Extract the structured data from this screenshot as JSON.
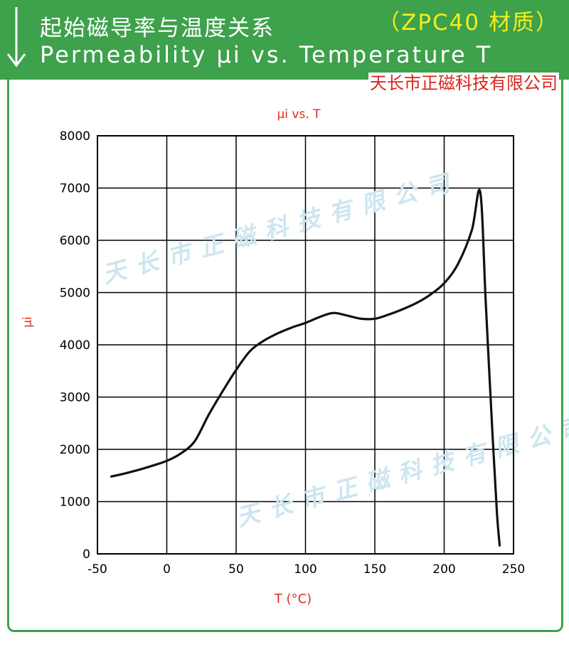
{
  "header": {
    "title_cn": "起始磁导率与温度关系",
    "title_en": "Permeability μi vs. Temperature T",
    "material": "（ZPC40 材质）",
    "company": "天长市正磁科技有限公司",
    "arrow_icon": "down-arrow-icon",
    "bg_color": "#3ea14c"
  },
  "watermark": {
    "text": "天长市正磁科技有限公司",
    "color": "#cde6f0"
  },
  "chart_data": {
    "type": "line",
    "title": "μi vs. T",
    "xlabel": "T (°C)",
    "ylabel": "μi",
    "xlim": [
      -50,
      250
    ],
    "ylim": [
      0,
      8000
    ],
    "xticks": [
      -50,
      0,
      50,
      100,
      150,
      200,
      250
    ],
    "yticks": [
      0,
      1000,
      2000,
      3000,
      4000,
      5000,
      6000,
      7000,
      8000
    ],
    "grid": true,
    "line_color": "#111111",
    "label_color": "#e02a20",
    "series": [
      {
        "name": "ZPC40",
        "x": [
          -40,
          -30,
          -20,
          -10,
          0,
          10,
          20,
          30,
          40,
          50,
          60,
          70,
          80,
          90,
          100,
          110,
          120,
          130,
          140,
          150,
          160,
          170,
          180,
          190,
          200,
          210,
          220,
          226,
          230,
          235,
          238,
          240
        ],
        "y": [
          1480,
          1540,
          1610,
          1690,
          1780,
          1920,
          2150,
          2650,
          3100,
          3520,
          3880,
          4080,
          4220,
          4330,
          4420,
          4530,
          4610,
          4560,
          4500,
          4500,
          4580,
          4680,
          4800,
          4960,
          5180,
          5550,
          6200,
          6920,
          4800,
          2200,
          800,
          160
        ]
      }
    ]
  }
}
